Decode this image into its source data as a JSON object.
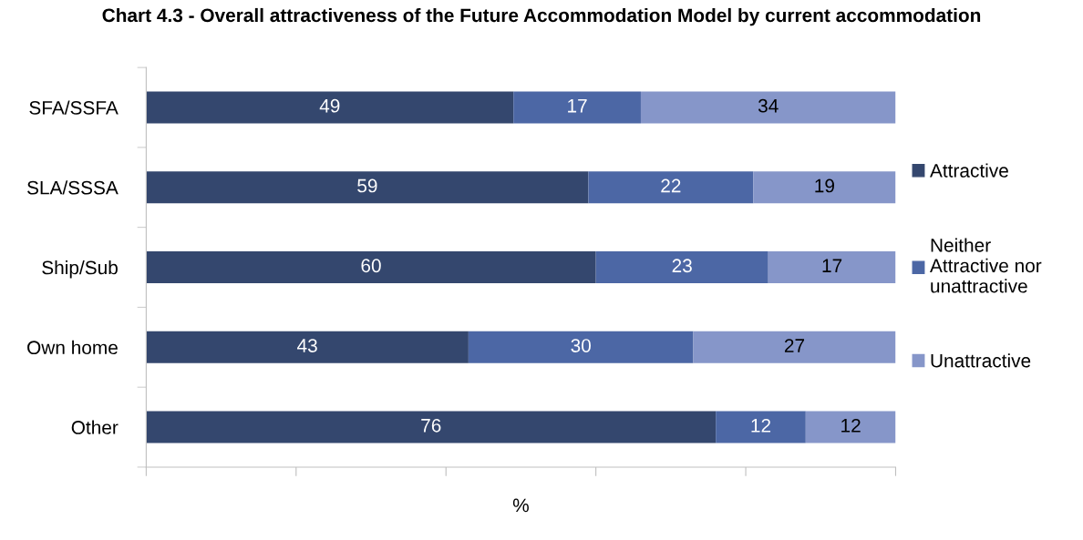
{
  "chart_data": {
    "type": "bar",
    "orientation": "horizontal",
    "stacked": true,
    "title": "Chart 4.3 - Overall attractiveness of the Future Accommodation Model by current accommodation",
    "xlabel": "%",
    "categories": [
      "SFA/SSFA",
      "SLA/SSSA",
      "Ship/Sub",
      "Own home",
      "Other"
    ],
    "series": [
      {
        "name": "Attractive",
        "color": "#34476e",
        "values": [
          49,
          59,
          60,
          43,
          76
        ]
      },
      {
        "name": "Neither Attractive nor unattractive",
        "color": "#4c67a5",
        "values": [
          17,
          22,
          23,
          30,
          12
        ]
      },
      {
        "name": "Unattractive",
        "color": "#8696c9",
        "values": [
          34,
          19,
          17,
          27,
          12
        ]
      }
    ],
    "xlim": [
      0,
      100
    ],
    "xticks": [
      {
        "value": 0,
        "label": null
      },
      {
        "value": 20,
        "label": null
      },
      {
        "value": 40,
        "label": null
      },
      {
        "value": 60,
        "label": null
      },
      {
        "value": 80,
        "label": null
      },
      {
        "value": 100,
        "label": null
      }
    ],
    "tick_labels": "y",
    "data_labels": true,
    "grid": false,
    "legend": "right"
  }
}
